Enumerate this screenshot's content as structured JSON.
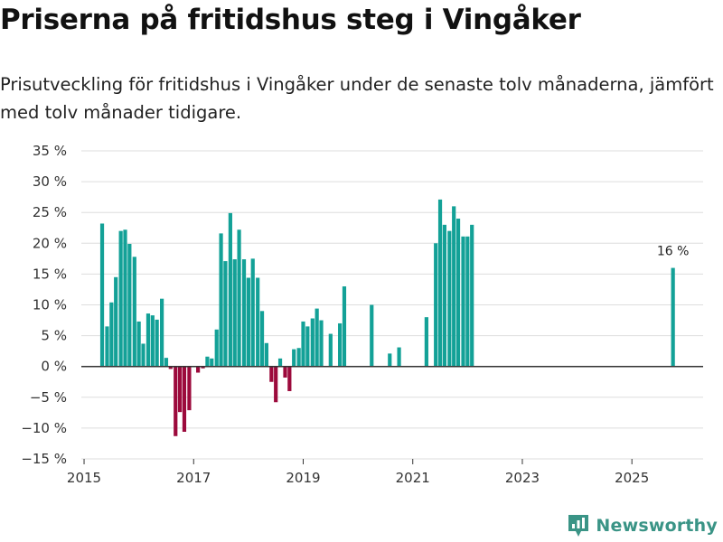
{
  "header": {
    "title": "Priserna på fritidshus steg i Vingåker",
    "subtitle": "Prisutveckling för fritidshus i Vingåker under de senaste tolv månaderna, jämfört med tolv månader tidigare."
  },
  "brand": {
    "name": "Newsworthy",
    "icon": "newsworthy-logo-icon"
  },
  "colors": {
    "positive": "#13a197",
    "negative": "#9c0a3c",
    "grid": "#dddddd",
    "zero": "#333333",
    "brand": "#3a9486"
  },
  "chart_data": {
    "type": "bar",
    "title": "Priserna på fritidshus steg i Vingåker",
    "xlabel": "",
    "ylabel": "",
    "ylim": [
      -15,
      35
    ],
    "xlim": [
      2014.95,
      2026.3
    ],
    "y_ticks": [
      -15,
      -10,
      -5,
      0,
      5,
      10,
      15,
      20,
      25,
      30,
      35
    ],
    "y_tick_labels": [
      "−15 %",
      "−10 %",
      "−5 %",
      "0 %",
      "5 %",
      "10 %",
      "15 %",
      "20 %",
      "25 %",
      "30 %",
      "35 %"
    ],
    "x_ticks": [
      2015,
      2017,
      2019,
      2021,
      2023,
      2025
    ],
    "x_tick_labels": [
      "2015",
      "2017",
      "2019",
      "2021",
      "2023",
      "2025"
    ],
    "grid": true,
    "series": [
      {
        "name": "Prisutveckling",
        "x": [
          2015.33,
          2015.42,
          2015.5,
          2015.58,
          2015.67,
          2015.75,
          2015.83,
          2015.92,
          2016.0,
          2016.08,
          2016.17,
          2016.25,
          2016.33,
          2016.42,
          2016.5,
          2016.58,
          2016.67,
          2016.75,
          2016.83,
          2016.92,
          2017.0,
          2017.08,
          2017.17,
          2017.25,
          2017.33,
          2017.42,
          2017.5,
          2017.58,
          2017.67,
          2017.75,
          2017.83,
          2017.92,
          2018.0,
          2018.08,
          2018.17,
          2018.25,
          2018.33,
          2018.42,
          2018.5,
          2018.58,
          2018.67,
          2018.75,
          2018.83,
          2018.92,
          2019.0,
          2019.08,
          2019.17,
          2019.25,
          2019.33,
          2019.42,
          2019.5,
          2019.67,
          2019.75,
          2020.25,
          2020.58,
          2020.67,
          2020.75,
          2021.25,
          2021.42,
          2021.5,
          2021.58,
          2021.67,
          2021.75,
          2021.83,
          2021.92,
          2022.0,
          2022.08,
          2025.75
        ],
        "values": [
          23.2,
          6.5,
          10.4,
          14.5,
          22.0,
          22.2,
          19.9,
          17.8,
          7.3,
          3.7,
          8.6,
          8.3,
          7.6,
          11.0,
          1.4,
          -0.4,
          -11.3,
          -7.4,
          -10.6,
          -7.1,
          0,
          -1.0,
          -0.3,
          1.6,
          1.3,
          6.0,
          21.6,
          17.1,
          24.9,
          17.4,
          22.2,
          17.4,
          14.4,
          17.5,
          14.4,
          9.0,
          3.8,
          -2.5,
          -5.8,
          1.3,
          -1.8,
          -4.0,
          2.8,
          3.0,
          7.3,
          6.5,
          7.8,
          9.4,
          7.5,
          0,
          5.3,
          7.0,
          13.0,
          10.0,
          2.1,
          0,
          3.1,
          8.0,
          20.0,
          27.1,
          23.0,
          22.0,
          26.0,
          24.0,
          21.1,
          21.1,
          23.0,
          16.0
        ]
      }
    ],
    "annotations": [
      {
        "x": 2025.75,
        "y": 16.0,
        "text": "16 %"
      }
    ]
  }
}
